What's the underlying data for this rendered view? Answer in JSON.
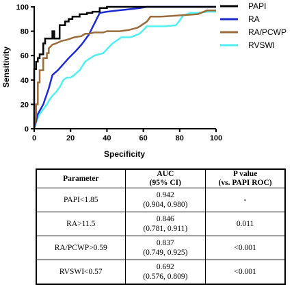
{
  "chart_data": {
    "type": "line",
    "xlabel": "Specificity",
    "ylabel": "Sensitivity",
    "xlim": [
      0,
      100
    ],
    "ylim": [
      0,
      100
    ],
    "xticks": [
      "0",
      "20",
      "40",
      "60",
      "80",
      "100"
    ],
    "yticks": [
      "0",
      "20",
      "40",
      "60",
      "80",
      "100"
    ],
    "legend_position": "right",
    "grid": false,
    "series": [
      {
        "name": "PAPI",
        "color": "#000000",
        "x": [
          0,
          0,
          1,
          1,
          2,
          2,
          3,
          3,
          5,
          5,
          6,
          6,
          10,
          10,
          11,
          11,
          14,
          14,
          17,
          17,
          19,
          19,
          21,
          21,
          25,
          25,
          29,
          29,
          32,
          32,
          36,
          36,
          40,
          40,
          60,
          60,
          100
        ],
        "y": [
          0,
          49,
          49,
          55,
          55,
          58,
          58,
          61,
          61,
          70,
          70,
          74,
          74,
          80,
          80,
          74,
          74,
          85,
          85,
          88,
          88,
          90,
          90,
          92,
          92,
          94,
          94,
          95,
          95,
          96,
          96,
          99,
          99,
          100,
          100,
          100,
          100
        ]
      },
      {
        "name": "RA",
        "color": "#1b2bd0",
        "x": [
          0,
          2,
          5,
          8,
          10,
          13,
          16,
          19,
          23,
          26,
          30,
          33,
          36,
          40,
          46,
          52,
          58,
          62,
          100
        ],
        "y": [
          0,
          12,
          20,
          33,
          44,
          48,
          53,
          58,
          64,
          69,
          77,
          86,
          95,
          96,
          97,
          98,
          99,
          100,
          100
        ]
      },
      {
        "name": "RA/PCWP",
        "color": "#9b6b3b",
        "x": [
          0,
          1,
          1,
          2,
          2,
          3,
          3,
          5,
          5,
          7,
          7,
          8,
          8,
          10,
          12,
          15,
          18,
          20,
          22,
          26,
          28,
          30,
          33,
          38,
          40,
          44,
          47,
          52,
          57,
          62,
          64,
          70,
          80,
          90,
          95,
          100
        ],
        "y": [
          0,
          10,
          20,
          20,
          38,
          38,
          48,
          48,
          58,
          58,
          62,
          62,
          66,
          69,
          70,
          72,
          73,
          74,
          75,
          76,
          78,
          78,
          79,
          79,
          80,
          80,
          80,
          81,
          83,
          88,
          92,
          92,
          93,
          94,
          97,
          97
        ]
      },
      {
        "name": "RVSWI",
        "color": "#4ff0f0",
        "x": [
          0,
          1,
          2,
          3,
          4,
          5,
          6,
          7,
          8,
          9,
          10,
          12,
          14,
          16,
          18,
          20,
          22,
          25,
          28,
          33,
          38,
          43,
          48,
          53,
          58,
          62,
          66,
          72,
          78,
          82,
          86,
          90,
          95,
          100
        ],
        "y": [
          0,
          5,
          9,
          12,
          14,
          16,
          18,
          20,
          23,
          25,
          27,
          30,
          34,
          40,
          42,
          42,
          44,
          48,
          55,
          60,
          62,
          70,
          75,
          75,
          78,
          84,
          84,
          84,
          85,
          93,
          95,
          95,
          96,
          96
        ]
      }
    ]
  },
  "table": {
    "headers": [
      {
        "line1": "Parameter",
        "line2": ""
      },
      {
        "line1": "AUC",
        "line2": "(95% CI)"
      },
      {
        "line1": "P value",
        "line2": "(vs. PAPI ROC)"
      }
    ],
    "rows": [
      {
        "parameter": "PAPI<1.85",
        "auc": "0.942",
        "ci": "(0.904, 0.980)",
        "p": "-"
      },
      {
        "parameter": "RA>11.5",
        "auc": "0.846",
        "ci": "(0.781, 0.911)",
        "p": "0.011"
      },
      {
        "parameter": "RA/PCWP>0.59",
        "auc": "0.837",
        "ci": "(0.749, 0.925)",
        "p": "<0.001"
      },
      {
        "parameter": "RVSWI<0.57",
        "auc": "0.692",
        "ci": "(0.576, 0.809)",
        "p": "<0.001"
      }
    ]
  }
}
